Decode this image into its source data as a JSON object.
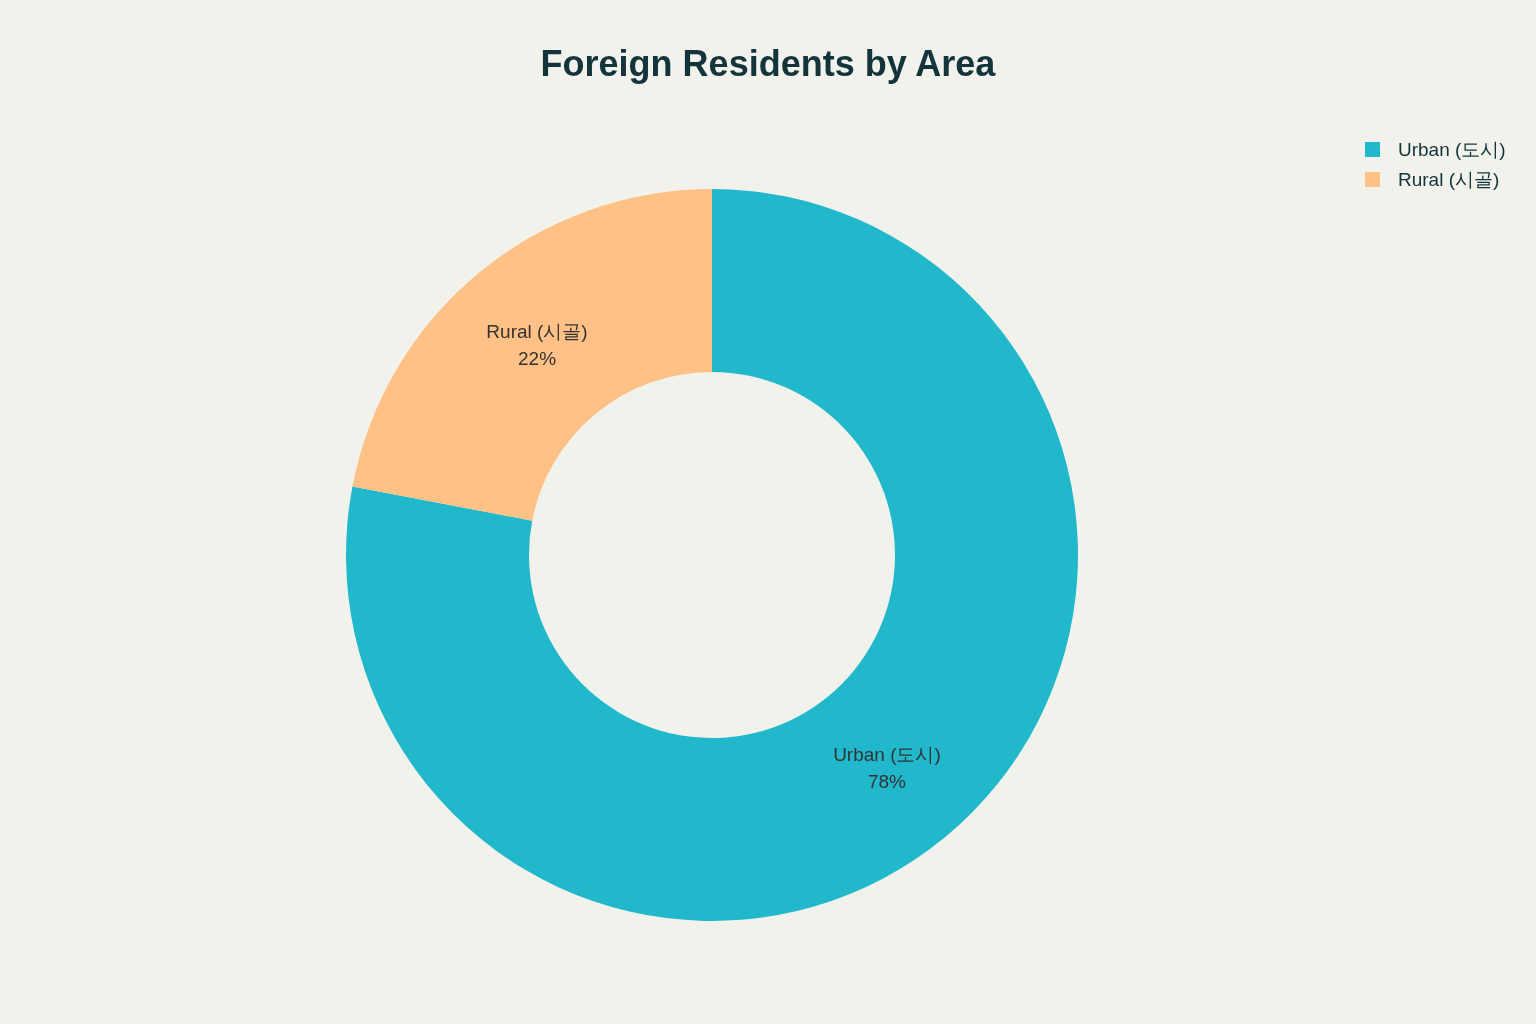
{
  "chart_data": {
    "type": "donut",
    "title": "Foreign Residents by Area",
    "categories": [
      "Urban (도시)",
      "Rural (시골)"
    ],
    "values": [
      78,
      22
    ],
    "colors": [
      "#21b8cc",
      "#ffc185"
    ],
    "value_labels": [
      "78%",
      "22%"
    ],
    "legend": "top right"
  }
}
